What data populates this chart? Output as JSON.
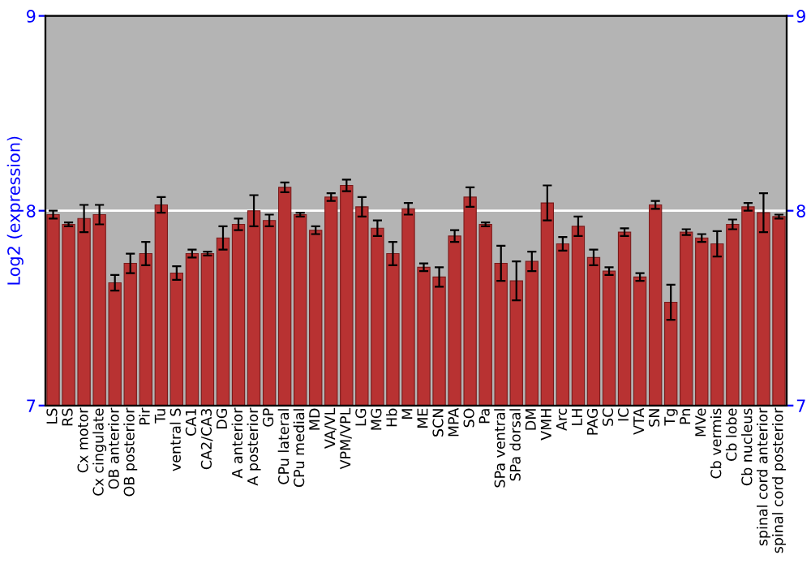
{
  "chart_data": {
    "type": "bar",
    "ylabel": "Log2 (expression)",
    "categories": [
      "LS",
      "RS",
      "Cx motor",
      "Cx cingulate",
      "OB anterior",
      "OB posterior",
      "Pir",
      "Tu",
      "ventral S",
      "CA1",
      "CA2/CA3",
      "DG",
      "A anterior",
      "A posterior",
      "GP",
      "CPu lateral",
      "CPu medial",
      "MD",
      "VA/VL",
      "VPM/VPL",
      "LG",
      "MG",
      "Hb",
      "M",
      "ME",
      "SCN",
      "MPA",
      "SO",
      "Pa",
      "SPa ventral",
      "SPa dorsal",
      "DM",
      "VMH",
      "Arc",
      "LH",
      "PAG",
      "SC",
      "IC",
      "VTA",
      "SN",
      "Tg",
      "Pn",
      "MVe",
      "Cb vermis",
      "Cb lobe",
      "Cb nucleus",
      "spinal cord anterior",
      "spinal cord posterior"
    ],
    "values": [
      7.98,
      7.93,
      7.96,
      7.98,
      7.63,
      7.73,
      7.78,
      8.03,
      7.68,
      7.78,
      7.78,
      7.86,
      7.93,
      8.0,
      7.95,
      8.12,
      7.98,
      7.9,
      8.07,
      8.13,
      8.02,
      7.91,
      7.78,
      8.01,
      7.71,
      7.66,
      7.87,
      8.07,
      7.93,
      7.73,
      7.64,
      7.74,
      8.04,
      7.83,
      7.92,
      7.76,
      7.69,
      7.89,
      7.66,
      8.03,
      7.53,
      7.89,
      7.86,
      7.83,
      7.93,
      8.02,
      7.99,
      7.97
    ],
    "errors": [
      0.02,
      0.01,
      0.07,
      0.05,
      0.04,
      0.05,
      0.06,
      0.04,
      0.035,
      0.02,
      0.01,
      0.06,
      0.03,
      0.08,
      0.03,
      0.025,
      0.01,
      0.02,
      0.02,
      0.03,
      0.05,
      0.04,
      0.06,
      0.03,
      0.02,
      0.05,
      0.03,
      0.05,
      0.01,
      0.09,
      0.1,
      0.05,
      0.09,
      0.035,
      0.05,
      0.04,
      0.02,
      0.02,
      0.02,
      0.02,
      0.09,
      0.015,
      0.02,
      0.065,
      0.025,
      0.02,
      0.1,
      0.01
    ],
    "color": "#b83232",
    "ylim": [
      7,
      9
    ],
    "yticks": [
      7,
      8,
      9
    ],
    "y2lim": [
      7,
      9
    ],
    "y2ticks": [
      7,
      8,
      9
    ],
    "grid": "y"
  }
}
